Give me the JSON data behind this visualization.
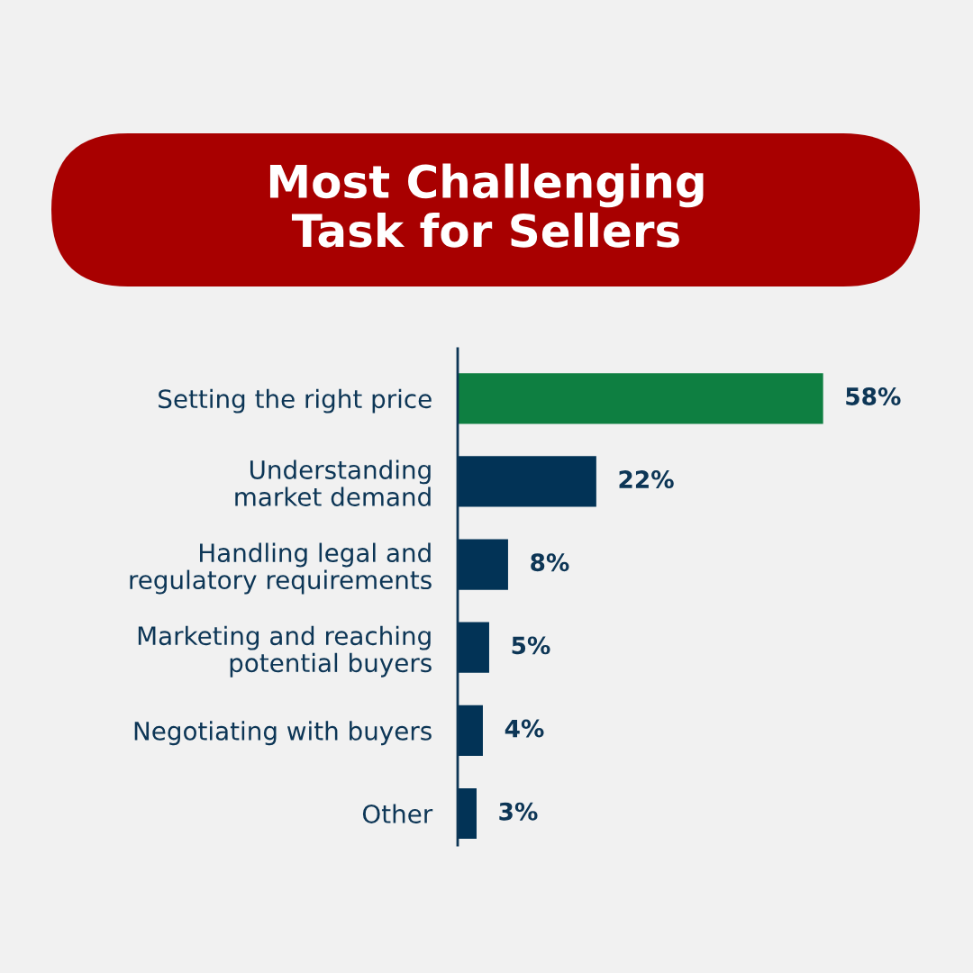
{
  "chart_data": {
    "type": "bar",
    "orientation": "horizontal",
    "title": "Most Challenging\nTask for Sellers",
    "categories": [
      "Setting the right price",
      "Understanding\nmarket demand",
      "Handling legal and\nregulatory requirements",
      "Marketing and reaching\npotential buyers",
      "Negotiating with buyers",
      "Other"
    ],
    "values": [
      58,
      22,
      8,
      5,
      4,
      3
    ],
    "colors": [
      "#0e7f41",
      "#023356",
      "#023356",
      "#023356",
      "#023356",
      "#023356"
    ],
    "value_labels": [
      "58%",
      "22%",
      "8%",
      "5%",
      "4%",
      "3%"
    ],
    "tick_labels": "y"
  }
}
